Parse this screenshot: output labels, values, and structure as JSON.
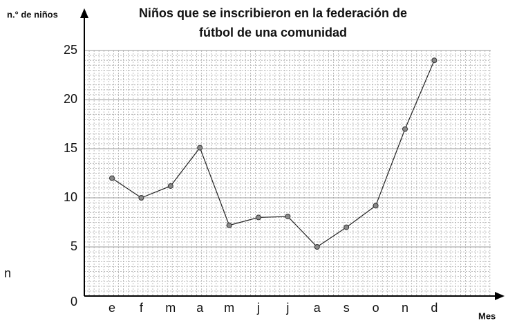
{
  "chart_data": {
    "type": "line",
    "title": [
      "Niños que se inscribieron en la federación de",
      "fútbol de una comunidad"
    ],
    "y_label": "n.° de niños",
    "x_label": "Mes",
    "annotation": "n",
    "categories": [
      "e",
      "f",
      "m",
      "a",
      "m",
      "j",
      "j",
      "a",
      "s",
      "o",
      "n",
      "d"
    ],
    "values": [
      12,
      10,
      11.2,
      15.1,
      7.2,
      8,
      8.1,
      5,
      7,
      9.2,
      17,
      24
    ],
    "color": "#222222",
    "marker_color": "#8a8a8a",
    "ylim": [
      0,
      25
    ],
    "yticks": [
      0,
      5,
      10,
      15,
      20,
      25
    ],
    "grid": true
  }
}
